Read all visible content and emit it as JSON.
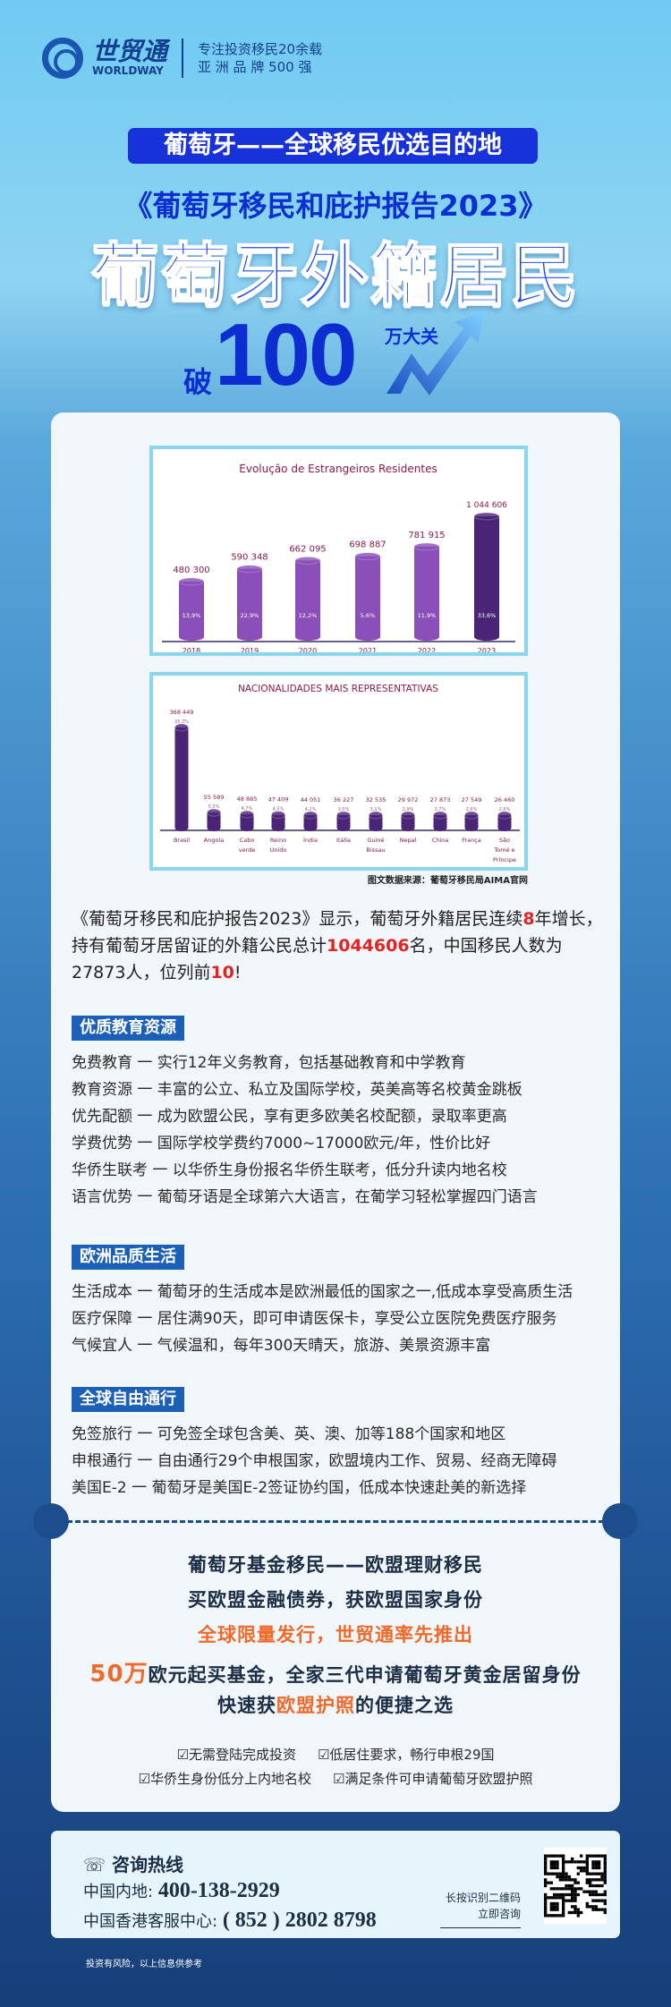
{
  "brand": {
    "name_cn": "世贸通",
    "name_en": "WORLDWAY",
    "registered": "®",
    "tagline1": "专注投资移民20余载",
    "tagline2": "亚 洲 品 牌 500 强"
  },
  "hero": {
    "banner": "葡萄牙——全球移民优选目的地",
    "subtitle": "《葡萄牙移民和庇护报告2023》",
    "title": "葡萄牙外籍居民",
    "po": "破",
    "number": "100",
    "suffix": "万大关"
  },
  "chart_data": [
    {
      "type": "bar",
      "title": "Evolução de Estrangeiros Residentes",
      "categories": [
        "2018",
        "2019",
        "2020",
        "2021",
        "2022",
        "2023"
      ],
      "values": [
        480300,
        590348,
        662095,
        698887,
        781915,
        1044606
      ],
      "value_labels": [
        "480 300",
        "590 348",
        "662 095",
        "698 887",
        "781 915",
        "1 044 606"
      ],
      "growth_labels": [
        "13,9%",
        "22,9%",
        "12,2%",
        "5.6%",
        "11,9%",
        "33,6%"
      ],
      "colors": {
        "bar": "#8a4fb8",
        "highlight": "#4a2577",
        "label": "#8b1a4a"
      }
    },
    {
      "type": "bar",
      "title": "NACIONALIDADES MAIS REPRESENTATIVAS",
      "categories": [
        "Brasil",
        "Angola",
        "Cabo verde",
        "Reino Unido",
        "Índia",
        "Itália",
        "Guiné Bissau",
        "Nepal",
        "China",
        "França",
        "São Tomé e Príncipe"
      ],
      "values": [
        368449,
        55589,
        48885,
        47409,
        44051,
        36227,
        32535,
        29972,
        27873,
        27549,
        26460
      ],
      "value_labels": [
        "368 449",
        "55 589",
        "48 885",
        "47 409",
        "44 051",
        "36 227",
        "32 535",
        "29 972",
        "27 873",
        "27 549",
        "26 460"
      ],
      "share_labels": [
        "35,3%",
        "5,3%",
        "4,7%",
        "4,5%",
        "4,2%",
        "3,5%",
        "3,1%",
        "2,9%",
        "2,7%",
        "2,6%",
        "2,5%"
      ],
      "colors": {
        "bar": "#4a2577",
        "label": "#8b1a4a"
      }
    }
  ],
  "source": "图文数据来源：葡萄牙移民局AIMA官网",
  "intro": {
    "p1": "《葡萄牙移民和庇护报告2023》显示，葡萄牙外籍居民连续",
    "h1": "8",
    "p2": "年增长，持有葡萄牙居留证的外籍公民总计",
    "h2": "1044606",
    "p3": "名，中国移民人数为27873人，位列前",
    "h3": "10",
    "p4": "!"
  },
  "sections": [
    {
      "title": "优质教育资源",
      "items": [
        "免费教育 一 实行12年义务教育，包括基础教育和中学教育",
        "教育资源 一 丰富的公立、私立及国际学校，英美高等名校黄金跳板",
        "优先配额 一 成为欧盟公民，享有更多欧美名校配额，录取率更高",
        "学费优势 一 国际学校学费约7000~17000欧元/年，性价比好",
        "华侨生联考 一 以华侨生身份报名华侨生联考，低分升读内地名校",
        "语言优势 一 葡萄牙语是全球第六大语言，在葡学习轻松掌握四门语言"
      ]
    },
    {
      "title": "欧洲品质生活",
      "items": [
        "生活成本 一 葡萄牙的生活成本是欧洲最低的国家之一,低成本享受高质生活",
        "医疗保障 一 居住满90天，即可申请医保卡，享受公立医院免费医疗服务",
        "气候宜人 一 气候温和，每年300天晴天，旅游、美景资源丰富"
      ]
    },
    {
      "title": "全球自由通行",
      "items": [
        "免签旅行 一 可免签全球包含美、英、澳、加等188个国家和地区",
        "申根通行 一 自由通行29个申根国家，欧盟境内工作、贸易、经商无障碍",
        "美国E-2 一 葡萄牙是美国E-2签证协约国，低成本快速赴美的新选择"
      ]
    }
  ],
  "promo": {
    "l1": "葡萄牙基金移民——欧盟理财移民",
    "l2": "买欧盟金融债券，获欧盟国家身份",
    "l3": "全球限量发行，世贸通率先推出",
    "l4a": "50万",
    "l4b": "欧元起买基金，全家三代申请葡萄牙黄金居留身份",
    "l5a": "快速获",
    "l5b": "欧盟护照",
    "l5c": "的便捷之选",
    "checks": [
      "无需登陆完成投资",
      "低居住要求，畅行申根29国",
      "华侨生身份低分上内地名校",
      "满足条件可申请葡萄牙欧盟护照"
    ]
  },
  "contact": {
    "title": "咨询热线",
    "mainland_label": "中国内地:",
    "mainland": "400-138-2929",
    "hk_label": "中国香港客服中心:",
    "hk": "( 852 ) 2802  8798",
    "qr1": "长按识别二维码",
    "qr2": "立即咨询",
    "icon": "phone-icon"
  },
  "disclaimer": "投资有风险，以上信息供参考"
}
